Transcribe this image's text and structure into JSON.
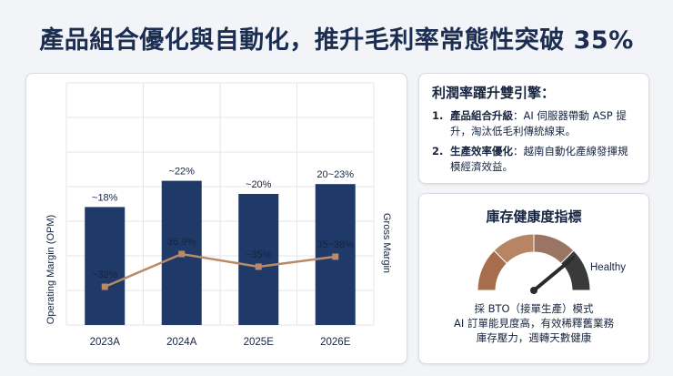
{
  "title": "產品組合優化與自動化，推升毛利率常態性突破 35%",
  "chart_data": {
    "type": "bar",
    "categories": [
      "2023A",
      "2024A",
      "2025E",
      "2026E"
    ],
    "series": [
      {
        "name": "Operating Margin (OPM)",
        "kind": "bar",
        "values": [
          18,
          22,
          20,
          21.5
        ],
        "labels": [
          "~18%",
          "~22%",
          "~20%",
          "20~23%"
        ]
      },
      {
        "name": "Gross Margin",
        "kind": "line",
        "values": [
          32,
          36.9,
          35,
          36.5
        ],
        "labels": [
          "~32%",
          "36.9%",
          "~35%",
          "35~38%"
        ]
      }
    ],
    "ylabel_left": "Operating Margin (OPM)",
    "ylabel_right": "Gross Margin",
    "grid": true,
    "colors": {
      "bar": "#1f3a68",
      "line": "#b88a68"
    }
  },
  "drivers": {
    "heading": "利潤率躍升雙引擎：",
    "items": [
      {
        "num": "1.",
        "bold": "產品組合升級",
        "text": "：AI 伺服器帶動 ASP 提升，淘汰低毛利傳統線束。"
      },
      {
        "num": "2.",
        "bold": "生產效率優化",
        "text": "：越南自動化產線發揮規模經濟效益。"
      }
    ]
  },
  "inventory": {
    "heading": "庫存健康度指標",
    "gauge_label": "Healthy",
    "gauge_level": 0.78,
    "caption_lines": [
      "採 BTO（接單生產）模式",
      "AI 訂單能見度高，有效稀釋舊業務",
      "庫存壓力，週轉天數健康"
    ],
    "colors": {
      "seg1": "#a86d4c",
      "seg2": "#b88564",
      "seg3": "#9a7564",
      "seg4": "#3a3a3a",
      "needle": "#2b2b2b"
    }
  }
}
